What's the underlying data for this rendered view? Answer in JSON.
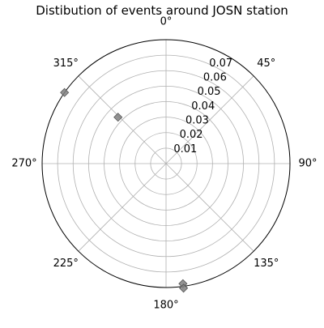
{
  "chart_data": {
    "type": "scatter",
    "projection": "polar",
    "title": "Distibution of events around JOSN station",
    "theta_zero": "N",
    "theta_direction": "clockwise",
    "theta_ticks": [
      "0°",
      "45°",
      "90°",
      "135°",
      "180°",
      "225°",
      "270°",
      "315°"
    ],
    "r_ticks": [
      "0.01",
      "0.02",
      "0.03",
      "0.04",
      "0.05",
      "0.06",
      "0.07"
    ],
    "rlim": [
      0,
      0.08
    ],
    "grid": true,
    "legend": "none",
    "series": [
      {
        "marker": "diamond",
        "color": "#808080",
        "points": [
          {
            "theta": 305,
            "r": 0.08
          },
          {
            "theta": 314,
            "r": 0.0431
          },
          {
            "theta": 172,
            "r": 0.0783
          },
          {
            "theta": 172,
            "r": 0.0812
          }
        ]
      }
    ]
  }
}
